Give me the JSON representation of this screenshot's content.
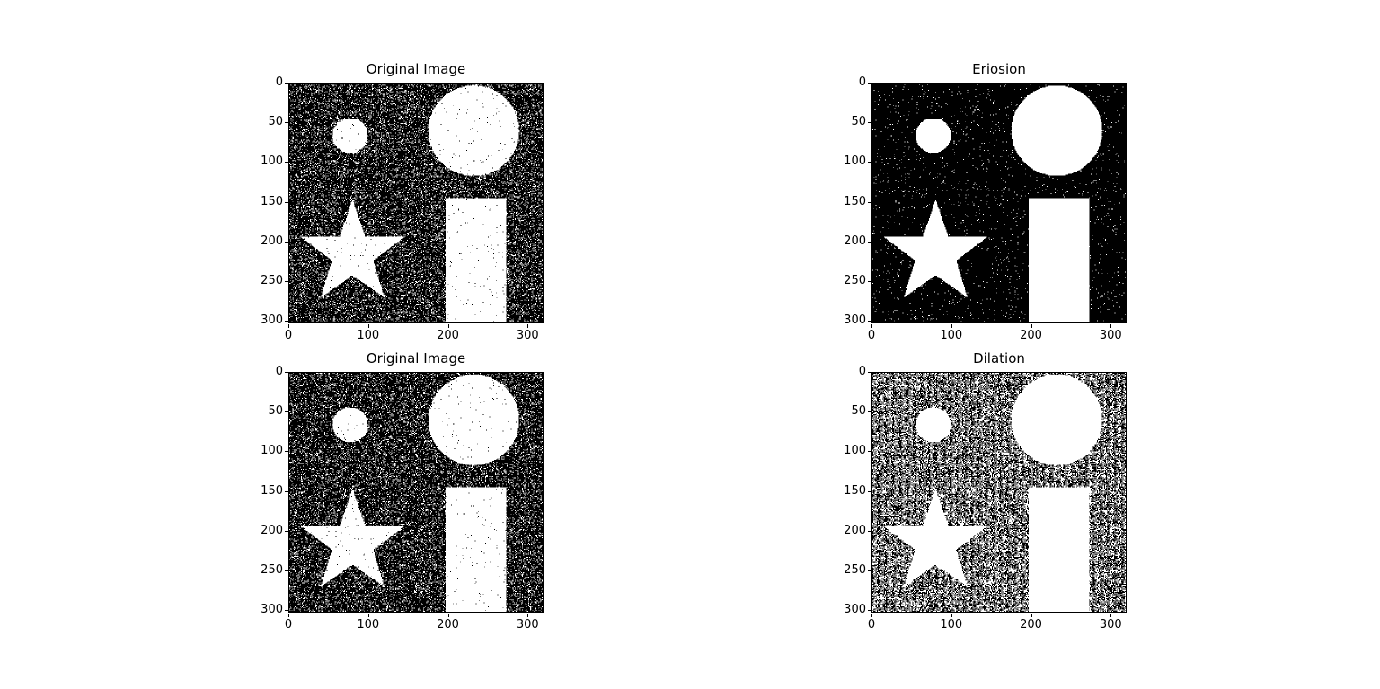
{
  "figure": {
    "panels": [
      {
        "id": "p0",
        "title": "Original Image",
        "variant": "original"
      },
      {
        "id": "p1",
        "title": "Eriosion",
        "variant": "erosion"
      },
      {
        "id": "p2",
        "title": "Original Image",
        "variant": "original"
      },
      {
        "id": "p3",
        "title": "Dilation",
        "variant": "dilation"
      }
    ],
    "x_ticks": [
      "0",
      "100",
      "200",
      "300"
    ],
    "y_ticks": [
      "0",
      "50",
      "100",
      "150",
      "200",
      "250",
      "300"
    ],
    "x_tick_values": [
      0,
      100,
      200,
      300
    ],
    "y_tick_values": [
      0,
      50,
      100,
      150,
      200,
      250,
      300
    ],
    "image_extent": {
      "width": 320,
      "height": 303
    },
    "colors": {
      "background": "#000000",
      "foreground": "#ffffff"
    }
  }
}
